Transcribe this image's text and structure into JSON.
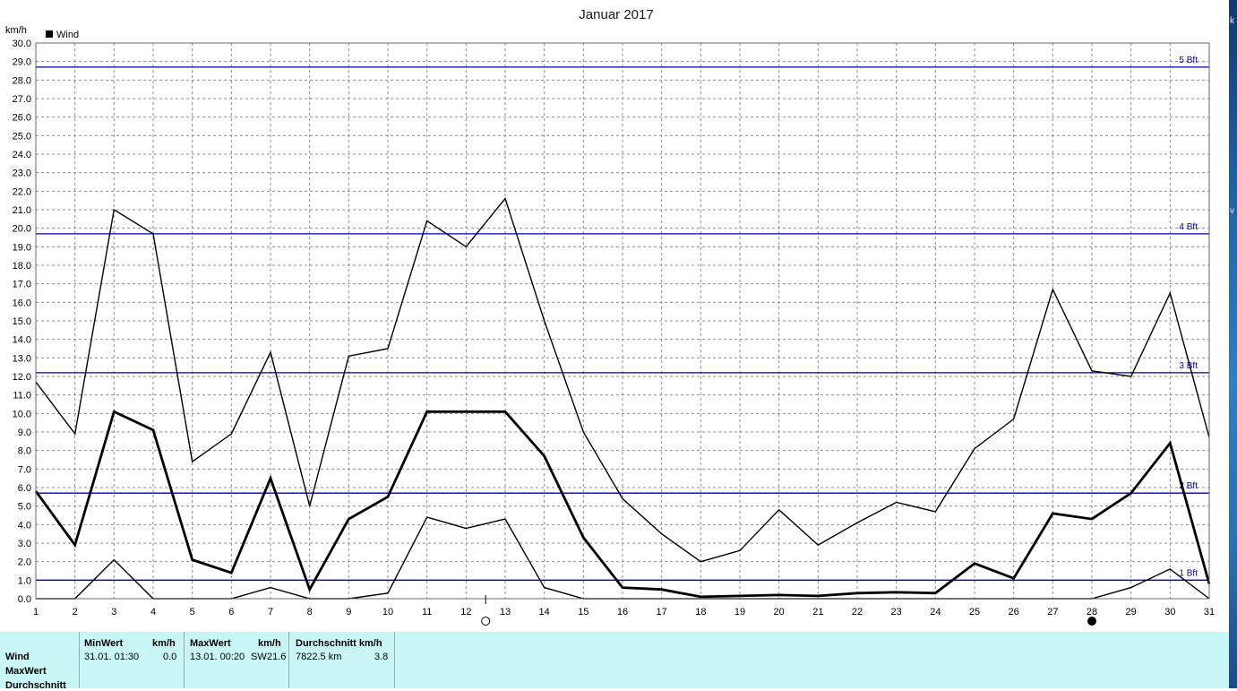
{
  "chart_data": {
    "type": "line",
    "title": "Januar 2017",
    "ylabel": "km/h",
    "xlabel": "",
    "legend": {
      "label": "Wind",
      "placement": "top-left"
    },
    "x": [
      1,
      2,
      3,
      4,
      5,
      6,
      7,
      8,
      9,
      10,
      11,
      12,
      13,
      14,
      15,
      16,
      17,
      18,
      19,
      20,
      21,
      22,
      23,
      24,
      25,
      26,
      27,
      28,
      29,
      30,
      31
    ],
    "xlim": [
      1,
      31
    ],
    "ylim": [
      0,
      30
    ],
    "ytick_step": 1.0,
    "grid": true,
    "series": [
      {
        "role": "max",
        "stroke_width": 1.4,
        "values": [
          11.7,
          8.9,
          21.0,
          19.7,
          7.4,
          8.9,
          13.3,
          5.0,
          13.1,
          13.5,
          20.4,
          19.0,
          21.6,
          15.0,
          9.0,
          5.4,
          3.5,
          2.0,
          2.6,
          4.8,
          2.9,
          4.1,
          5.2,
          4.7,
          8.1,
          9.7,
          16.7,
          12.3,
          12.0,
          16.5,
          8.7
        ]
      },
      {
        "role": "average",
        "stroke_width": 2.8,
        "values": [
          5.8,
          2.9,
          10.1,
          9.1,
          2.1,
          1.4,
          6.5,
          0.5,
          4.3,
          5.5,
          10.1,
          10.1,
          10.1,
          7.7,
          3.3,
          0.6,
          0.5,
          0.1,
          0.15,
          0.2,
          0.15,
          0.3,
          0.35,
          0.3,
          1.9,
          1.1,
          4.6,
          4.3,
          5.7,
          8.4,
          0.8
        ]
      },
      {
        "role": "min",
        "stroke_width": 1.4,
        "values": [
          0.0,
          0.0,
          2.1,
          0.0,
          0.0,
          0.0,
          0.6,
          0.0,
          0.0,
          0.3,
          4.4,
          3.8,
          4.3,
          0.6,
          0.0,
          0.0,
          0.0,
          0.0,
          0.0,
          0.0,
          0.0,
          0.0,
          0.0,
          0.0,
          0.0,
          0.0,
          0.0,
          0.0,
          0.6,
          1.6,
          0.0
        ]
      }
    ],
    "reference_lines": [
      {
        "label": "1 Bft",
        "value": 1.0
      },
      {
        "label": "2 Bft",
        "value": 5.7
      },
      {
        "label": "3 Bft",
        "value": 12.2
      },
      {
        "label": "4 Bft",
        "value": 19.7
      },
      {
        "label": "5 Bft",
        "value": 28.7
      }
    ],
    "reference_line_color": "#0000aa",
    "series_color": "#000000",
    "moon_markers": [
      {
        "phase": "full-moon",
        "x": 12.5
      },
      {
        "phase": "new-moon",
        "x": 28
      }
    ]
  },
  "stats": {
    "row_labels": [
      "Wind",
      "MaxWert",
      "Durchschnitt"
    ],
    "min": {
      "header": "MinWert",
      "unit": "km/h",
      "time": "31.01.  01:30",
      "value": "0.0"
    },
    "max": {
      "header": "MaxWert",
      "unit": "km/h",
      "time": "13.01.  00:20",
      "direction": "SW",
      "value": "21.6"
    },
    "avg": {
      "header": "Durchschnitt km/h",
      "distance": "7822.5 km",
      "value": "3.8"
    }
  },
  "right_edge_glyphs": [
    "k",
    "v"
  ]
}
